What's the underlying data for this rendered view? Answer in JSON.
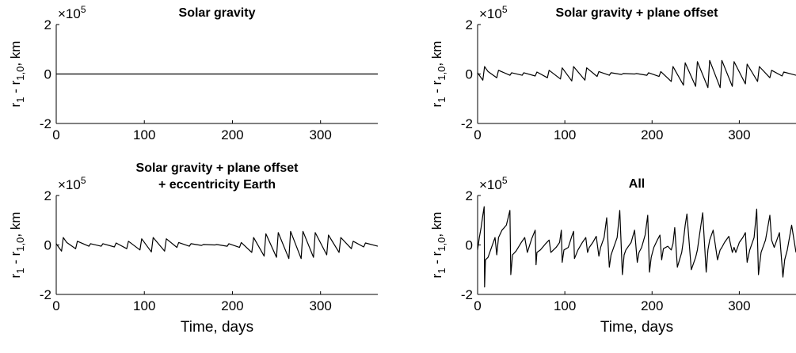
{
  "chart_data": [
    {
      "type": "line",
      "title": [
        "Solar gravity"
      ],
      "xlabel": "",
      "ylabel": "r_1 - r_{1,0}, km",
      "y_multiplier": "×10^5",
      "xlim": [
        0,
        365
      ],
      "ylim": [
        -2,
        2
      ],
      "x_ticks": [
        0,
        100,
        200,
        300
      ],
      "y_ticks": [
        -2,
        0,
        2
      ],
      "x_tick_labels": [
        "0",
        "100",
        "200",
        "300"
      ],
      "y_tick_labels": [
        "-2",
        "0",
        "2"
      ],
      "grid": false,
      "series": [
        {
          "x": [
            0,
            365
          ],
          "y": [
            0,
            0
          ]
        }
      ]
    },
    {
      "type": "line",
      "title": [
        "Solar gravity + plane offset"
      ],
      "xlabel": "",
      "ylabel": "r_1 - r_{1,0}, km",
      "y_multiplier": "×10^5",
      "xlim": [
        0,
        365
      ],
      "ylim": [
        -2,
        2
      ],
      "x_ticks": [
        0,
        100,
        200,
        300
      ],
      "y_ticks": [
        -2,
        0,
        2
      ],
      "x_tick_labels": [
        "0",
        "100",
        "200",
        "300"
      ],
      "y_tick_labels": [
        "-2",
        "0",
        "2"
      ],
      "grid": false,
      "series": [
        {
          "x": [
            0,
            2,
            6,
            8,
            10,
            12,
            22,
            24,
            37,
            39,
            51,
            53,
            66,
            68,
            80,
            82,
            95,
            97,
            108,
            110,
            123,
            125,
            137,
            139,
            151,
            153,
            165,
            167,
            180,
            182,
            194,
            196,
            208,
            210,
            222,
            224,
            236,
            238,
            250,
            252,
            264,
            266,
            278,
            280,
            292,
            294,
            307,
            309,
            321,
            323,
            335,
            337,
            349,
            351,
            365
          ],
          "y": [
            0.05,
            -0.05,
            -0.25,
            0.3,
            0.2,
            0.1,
            -0.15,
            0.15,
            -0.05,
            0.05,
            -0.05,
            0.05,
            -0.08,
            0.08,
            -0.15,
            0.15,
            -0.2,
            0.25,
            -0.28,
            0.3,
            -0.25,
            0.25,
            -0.1,
            0.1,
            -0.05,
            0.05,
            -0.02,
            0.02,
            0,
            0.02,
            -0.05,
            0.05,
            -0.1,
            0.1,
            -0.3,
            0.3,
            -0.45,
            0.45,
            -0.5,
            0.5,
            -0.55,
            0.55,
            -0.55,
            0.55,
            -0.5,
            0.5,
            -0.4,
            0.4,
            -0.3,
            0.3,
            -0.15,
            0.15,
            -0.08,
            0.08,
            -0.05
          ]
        }
      ]
    },
    {
      "type": "line",
      "title": [
        "Solar gravity + plane offset",
        "+ eccentricity Earth"
      ],
      "xlabel": "Time, days",
      "ylabel": "r_1 - r_{1,0}, km",
      "y_multiplier": "×10^5",
      "xlim": [
        0,
        365
      ],
      "ylim": [
        -2,
        2
      ],
      "x_ticks": [
        0,
        100,
        200,
        300
      ],
      "y_ticks": [
        -2,
        0,
        2
      ],
      "x_tick_labels": [
        "0",
        "100",
        "200",
        "300"
      ],
      "y_tick_labels": [
        "-2",
        "0",
        "2"
      ],
      "grid": false,
      "series": [
        {
          "x": [
            0,
            2,
            6,
            8,
            10,
            12,
            22,
            24,
            37,
            39,
            51,
            53,
            66,
            68,
            80,
            82,
            95,
            97,
            108,
            110,
            123,
            125,
            137,
            139,
            151,
            153,
            165,
            167,
            180,
            182,
            194,
            196,
            208,
            210,
            222,
            224,
            236,
            238,
            250,
            252,
            264,
            266,
            278,
            280,
            292,
            294,
            307,
            309,
            321,
            323,
            335,
            337,
            349,
            351,
            365
          ],
          "y": [
            0.05,
            -0.05,
            -0.25,
            0.3,
            0.2,
            0.1,
            -0.15,
            0.15,
            -0.05,
            0.05,
            -0.05,
            0.05,
            -0.08,
            0.08,
            -0.15,
            0.15,
            -0.2,
            0.25,
            -0.28,
            0.3,
            -0.25,
            0.25,
            -0.1,
            0.1,
            -0.05,
            0.05,
            -0.02,
            0.02,
            0,
            0.02,
            -0.05,
            0.05,
            -0.1,
            0.1,
            -0.3,
            0.3,
            -0.45,
            0.45,
            -0.5,
            0.5,
            -0.55,
            0.55,
            -0.55,
            0.55,
            -0.5,
            0.5,
            -0.4,
            0.4,
            -0.3,
            0.3,
            -0.15,
            0.15,
            -0.08,
            0.08,
            -0.05
          ]
        }
      ]
    },
    {
      "type": "line",
      "title": [
        "All"
      ],
      "xlabel": "Time, days",
      "ylabel": "r_1 - r_{1,0}, km",
      "y_multiplier": "×10^5",
      "xlim": [
        0,
        365
      ],
      "ylim": [
        -2,
        2
      ],
      "x_ticks": [
        0,
        100,
        200,
        300
      ],
      "y_ticks": [
        -2,
        0,
        2
      ],
      "x_tick_labels": [
        "0",
        "100",
        "200",
        "300"
      ],
      "y_tick_labels": [
        "-2",
        "0",
        "2"
      ],
      "grid": false,
      "series": [
        {
          "x": [
            0,
            2,
            4,
            6,
            7.5,
            8,
            9,
            12,
            16,
            20,
            22,
            24,
            28,
            33,
            37,
            38,
            40,
            44,
            50,
            54,
            57,
            62,
            66,
            67,
            68,
            72,
            78,
            82,
            84,
            90,
            94,
            96,
            97,
            99,
            104,
            108,
            110,
            111,
            115,
            120,
            124,
            126,
            128,
            132,
            136,
            139,
            141,
            145,
            148,
            151,
            153,
            155,
            160,
            163,
            166,
            168,
            170,
            176,
            180,
            183,
            185,
            188,
            192,
            195,
            197,
            199,
            202,
            206,
            209,
            211,
            213,
            218,
            222,
            224,
            226,
            229,
            234,
            236,
            238,
            240,
            245,
            250,
            252,
            254,
            258,
            262,
            264,
            266,
            270,
            275,
            278,
            280,
            283,
            288,
            292,
            294,
            296,
            300,
            304,
            307,
            309,
            312,
            317,
            320,
            322,
            325,
            330,
            335,
            337,
            340,
            346,
            350,
            352,
            355,
            360,
            365
          ],
          "y": [
            -0.2,
            0.3,
            0.7,
            1.2,
            1.55,
            -1.7,
            -0.6,
            -0.5,
            -0.1,
            0.3,
            -0.4,
            0.3,
            0.6,
            0.8,
            1.4,
            -1.2,
            -0.4,
            -0.25,
            0.1,
            0.3,
            -0.3,
            0.25,
            0.6,
            -0.8,
            -0.3,
            -0.2,
            0.05,
            0.2,
            -0.3,
            -0.1,
            0.1,
            0.6,
            -0.7,
            -0.2,
            -0.1,
            0.35,
            0.55,
            -0.55,
            -0.2,
            0.1,
            0.3,
            -0.3,
            -0.1,
            0.1,
            0.35,
            -0.45,
            -0.1,
            0.3,
            1.1,
            -0.9,
            -0.4,
            -0.2,
            0.3,
            1.4,
            -1.2,
            -0.4,
            -0.2,
            0.1,
            0.6,
            -0.7,
            -0.3,
            -0.1,
            0.4,
            1.2,
            -1.1,
            -0.5,
            -0.1,
            0.2,
            0.4,
            -0.6,
            -0.15,
            -0.05,
            -0.2,
            0.05,
            0.7,
            -0.9,
            -0.3,
            0.2,
            0.8,
            1.25,
            -1.0,
            -0.5,
            -0.2,
            0.3,
            1.3,
            -1.1,
            -0.2,
            0.2,
            0.6,
            -0.6,
            -0.2,
            -0.1,
            0.1,
            0.35,
            -0.3,
            -0.1,
            -0.3,
            0.1,
            0.3,
            0.5,
            -0.7,
            -0.2,
            0.3,
            1.45,
            -1.2,
            -0.3,
            0.2,
            1.2,
            0.2,
            -0.1,
            0.5,
            -1.3,
            -0.6,
            -0.2,
            0.8,
            -0.3
          ]
        }
      ]
    }
  ]
}
